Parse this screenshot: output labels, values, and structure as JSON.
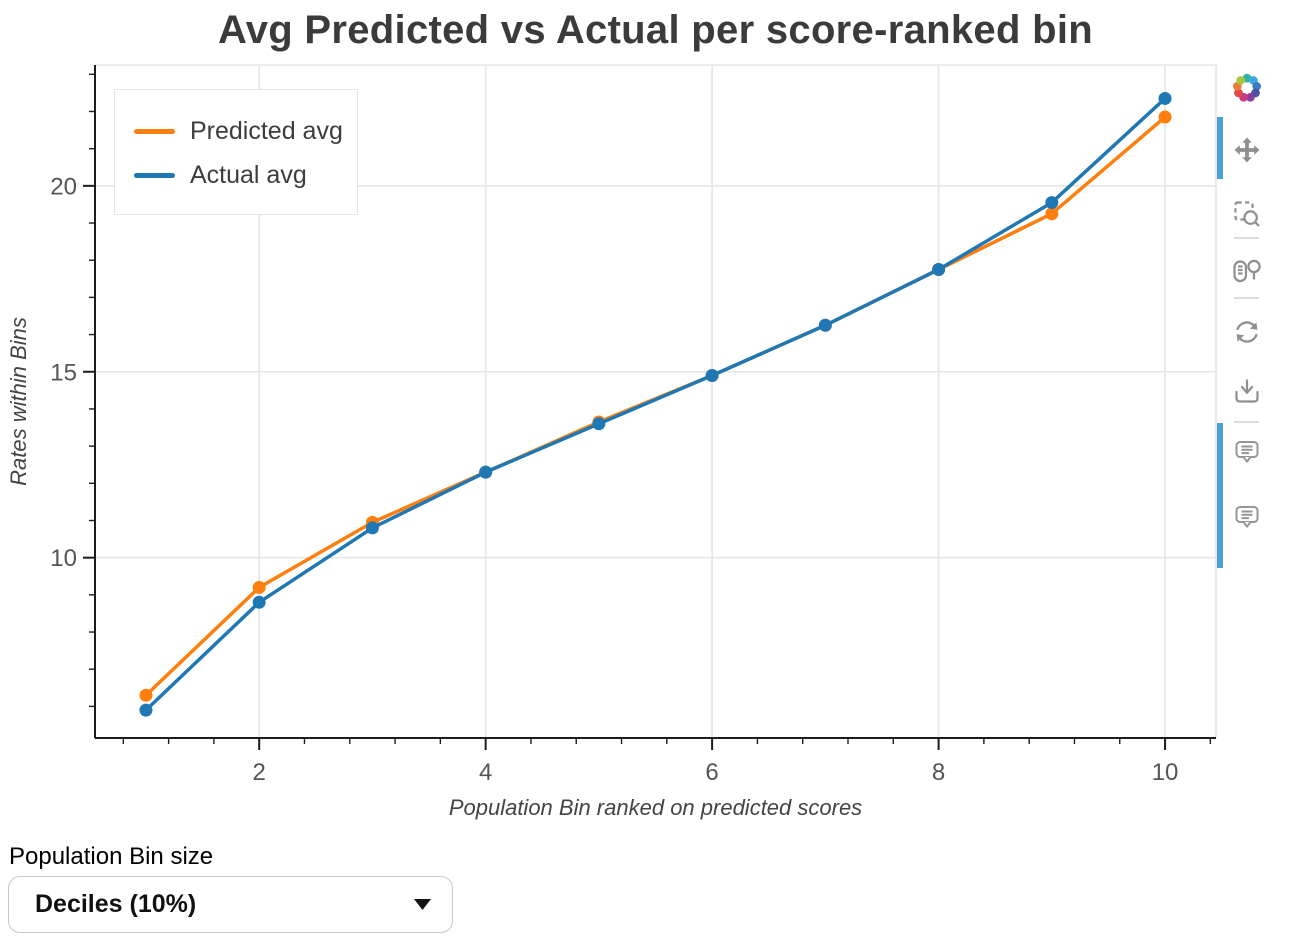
{
  "title": "Avg Predicted vs Actual per score-ranked bin",
  "chart_data": {
    "type": "line",
    "x": [
      1,
      2,
      3,
      4,
      5,
      6,
      7,
      8,
      9,
      10
    ],
    "series": [
      {
        "name": "Predicted avg",
        "color": "#ff7f0e",
        "values": [
          6.3,
          9.2,
          10.95,
          12.3,
          13.65,
          14.9,
          16.25,
          17.75,
          19.25,
          21.85
        ]
      },
      {
        "name": "Actual avg",
        "color": "#1f77b4",
        "values": [
          5.9,
          8.8,
          10.8,
          12.3,
          13.6,
          14.9,
          16.25,
          17.75,
          19.55,
          22.35
        ]
      }
    ],
    "title": "Avg Predicted vs Actual per score-ranked bin",
    "xlabel": "Population Bin ranked on predicted scores",
    "ylabel": "Rates within Bins",
    "xlim": [
      0.55,
      10.45
    ],
    "ylim": [
      5.15,
      23.25
    ],
    "x_major_ticks": [
      2,
      4,
      6,
      8,
      10
    ],
    "y_major_ticks": [
      10,
      15,
      20
    ],
    "x_minor_step": 0.4,
    "y_minor_step": 1,
    "grid": true,
    "grid_color": "#e5e5e5",
    "axis_color": "#1c1c1c",
    "tick_label_color": "#555555",
    "axis_label_color": "#444444",
    "legend_position": "top_left",
    "marker": "circle",
    "marker_radius": 6.5,
    "line_width": 3.5
  },
  "toolbar": {
    "logo": "bokeh-logo",
    "active_color": "#4aa0d5",
    "tools": [
      {
        "icon": "pan-icon",
        "name": "pan",
        "active": true
      },
      {
        "icon": "box-zoom-icon",
        "name": "box zoom",
        "active": false
      },
      {
        "icon": "wheel-zoom-icon",
        "name": "wheel zoom",
        "active": false
      },
      {
        "icon": "reset-icon",
        "name": "reset",
        "active": false
      },
      {
        "icon": "save-icon",
        "name": "save",
        "active": false
      },
      {
        "icon": "hover-icon",
        "name": "hover",
        "active": true
      },
      {
        "icon": "hover-icon",
        "name": "hover",
        "active": true
      }
    ]
  },
  "controls": {
    "bin_size_label": "Population Bin size",
    "bin_size_value": "Deciles (10%)"
  }
}
